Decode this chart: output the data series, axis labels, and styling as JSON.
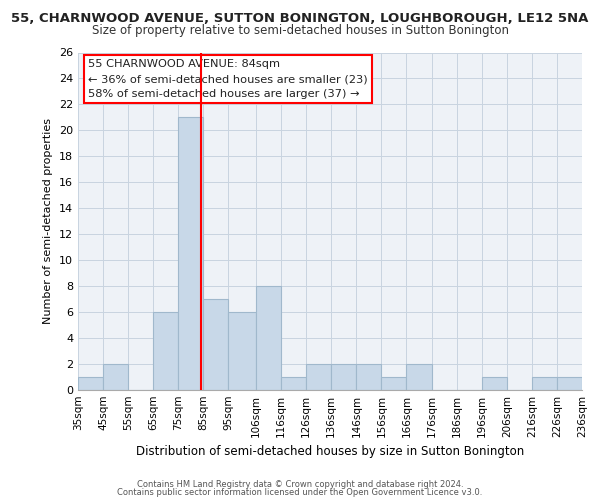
{
  "title": "55, CHARNWOOD AVENUE, SUTTON BONINGTON, LOUGHBOROUGH, LE12 5NA",
  "subtitle": "Size of property relative to semi-detached houses in Sutton Bonington",
  "xlabel": "Distribution of semi-detached houses by size in Sutton Bonington",
  "ylabel": "Number of semi-detached properties",
  "bin_edges": [
    35,
    45,
    55,
    65,
    75,
    85,
    95,
    106,
    116,
    126,
    136,
    146,
    156,
    166,
    176,
    186,
    196,
    206,
    216,
    226,
    236
  ],
  "counts": [
    1,
    2,
    0,
    6,
    21,
    7,
    6,
    8,
    1,
    2,
    2,
    2,
    1,
    2,
    0,
    0,
    1,
    0,
    1,
    1
  ],
  "tick_labels": [
    "35sqm",
    "45sqm",
    "55sqm",
    "65sqm",
    "75sqm",
    "85sqm",
    "95sqm",
    "106sqm",
    "116sqm",
    "126sqm",
    "136sqm",
    "146sqm",
    "156sqm",
    "166sqm",
    "176sqm",
    "186sqm",
    "196sqm",
    "206sqm",
    "216sqm",
    "226sqm",
    "236sqm"
  ],
  "bar_color": "#c8d8e8",
  "bar_edge_color": "#a0b8cc",
  "grid_color": "#c8d4e0",
  "background_color": "#eef2f7",
  "fig_background": "#ffffff",
  "red_line_x": 84,
  "ylim": [
    0,
    26
  ],
  "yticks": [
    0,
    2,
    4,
    6,
    8,
    10,
    12,
    14,
    16,
    18,
    20,
    22,
    24,
    26
  ],
  "annotation_title": "55 CHARNWOOD AVENUE: 84sqm",
  "annotation_line1": "← 36% of semi-detached houses are smaller (23)",
  "annotation_line2": "58% of semi-detached houses are larger (37) →",
  "footnote1": "Contains HM Land Registry data © Crown copyright and database right 2024.",
  "footnote2": "Contains public sector information licensed under the Open Government Licence v3.0."
}
